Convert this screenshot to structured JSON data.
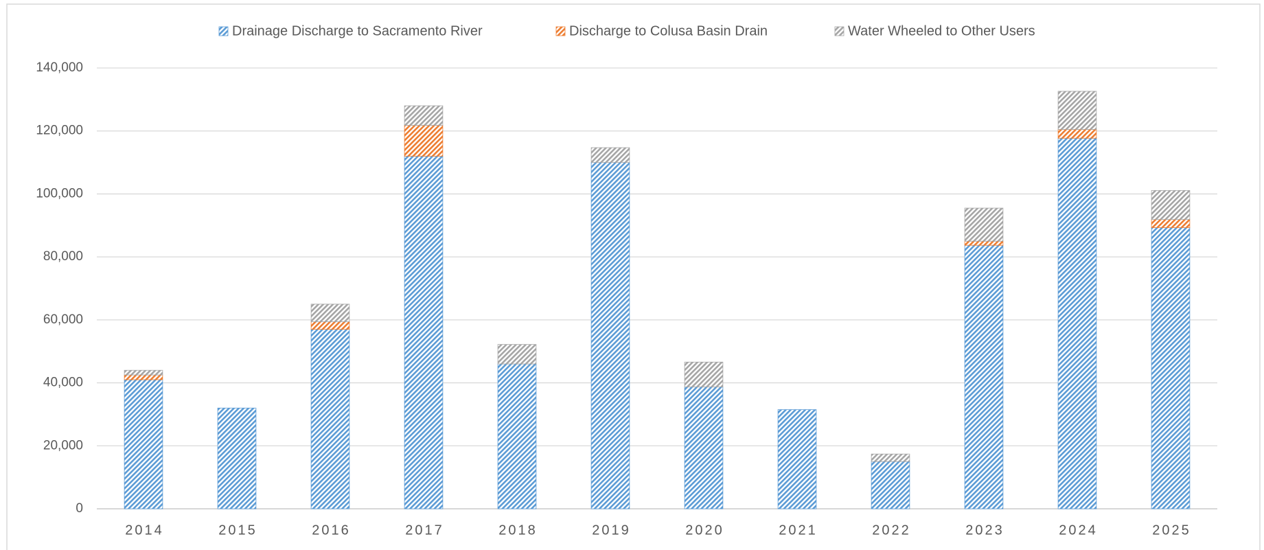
{
  "chart_data": {
    "type": "stacked_bar",
    "categories": [
      "2014",
      "2015",
      "2016",
      "2017",
      "2018",
      "2019",
      "2020",
      "2021",
      "2022",
      "2023",
      "2024",
      "2025"
    ],
    "series": [
      {
        "name": "Drainage Discharge to Sacramento River",
        "color": "#5b9bd5",
        "values": [
          41000,
          32000,
          57000,
          112000,
          46000,
          110000,
          38700,
          31500,
          15000,
          83700,
          117700,
          89300
        ]
      },
      {
        "name": "Discharge to Colusa Basin Drain",
        "color": "#ed7d31",
        "values": [
          1500,
          0,
          2400,
          9800,
          0,
          0,
          0,
          0,
          0,
          1300,
          2800,
          2600
        ]
      },
      {
        "name": "Water Wheeled to Other Users",
        "color": "#a5a5a5",
        "values": [
          1500,
          0,
          5600,
          6200,
          6200,
          4700,
          7900,
          0,
          2400,
          10500,
          12100,
          9200
        ]
      }
    ],
    "ylim": [
      0,
      140000
    ],
    "yticks": [
      0,
      {
        "value": 20000,
        "label": "20,000"
      },
      {
        "value": 40000,
        "label": "40,000"
      },
      {
        "value": 60000,
        "label": "60,000"
      },
      {
        "value": 80000,
        "label": "80,000"
      },
      {
        "value": 100000,
        "label": "100,000"
      },
      {
        "value": 120000,
        "label": "120,000"
      },
      {
        "value": 140000,
        "label": "140,000"
      }
    ],
    "grid": true,
    "legend": "top"
  }
}
